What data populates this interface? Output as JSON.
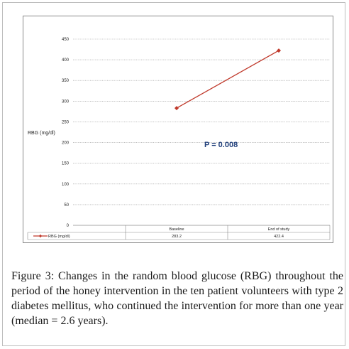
{
  "chart_data": {
    "type": "line",
    "categories": [
      "Baseline",
      "End of study"
    ],
    "series": [
      {
        "name": "RBG (mg/dl)",
        "values": [
          283.2,
          422.4
        ],
        "color": "#c0392b"
      }
    ],
    "y_ticks": [
      0,
      50,
      100,
      150,
      200,
      250,
      300,
      350,
      400,
      450
    ],
    "ylim": [
      0,
      450
    ],
    "ylabel": "RBG (mg/dl)",
    "xlabel": "",
    "annotation": "P = 0.008",
    "annotation_color": "#1f3e7a",
    "grid": true,
    "legend": "data-table-below",
    "table_values": [
      "283.2",
      "422.4"
    ]
  },
  "caption": {
    "label": "Figure 3:",
    "text": " Changes in the random blood glucose (RBG) throughout the period of the honey intervention in the ten patient volunteers with type 2 diabetes mellitus, who continued the intervention for more than one year (median = 2.6 years)."
  }
}
